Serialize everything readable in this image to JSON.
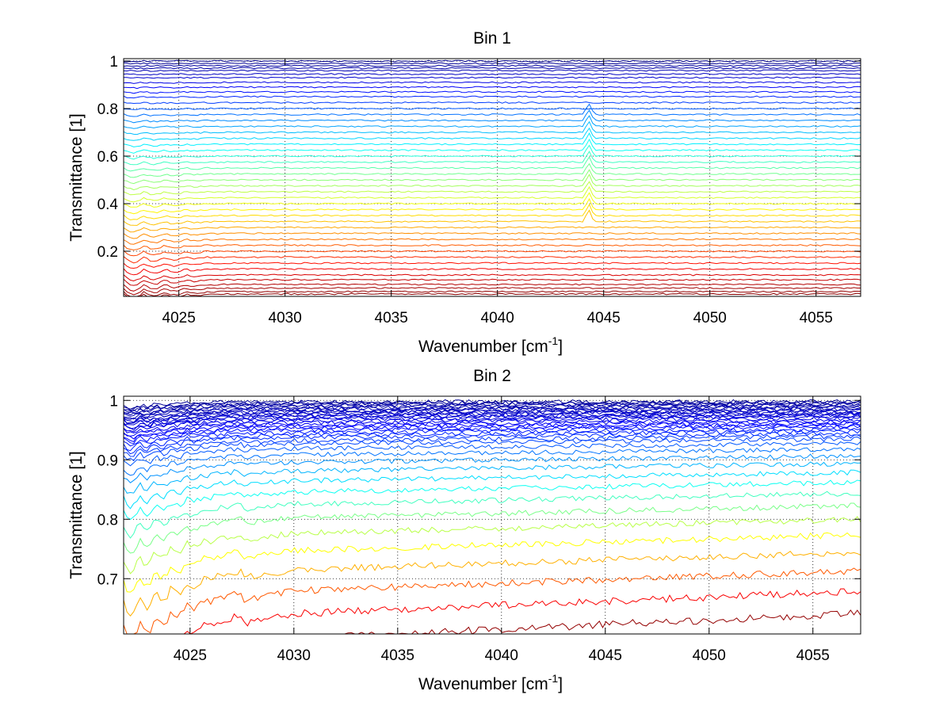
{
  "chart_data": [
    {
      "type": "line",
      "title": "Bin 1",
      "xlabel": "Wavenumber [cm",
      "xlabel_sup": "-1",
      "xlabel_end": "]",
      "ylabel": "Transmittance [1]",
      "xlim": [
        4022.4,
        4057.1
      ],
      "ylim": [
        0.01,
        1.01
      ],
      "xticks": [
        4025,
        4030,
        4035,
        4040,
        4045,
        4050,
        4055
      ],
      "xtick_labels": [
        "4025",
        "4030",
        "4035",
        "4040",
        "4045",
        "4050",
        "4055"
      ],
      "yticks": [
        0.2,
        0.4,
        0.6,
        0.8,
        1
      ],
      "ytick_labels": [
        "0.2",
        "0.4",
        "0.6",
        "0.8",
        "1"
      ],
      "grid": true,
      "colormap": "jet",
      "colors": {
        "high": "#00008f",
        "mid": "#ffff00",
        "low": "#800000"
      },
      "series_count": 46,
      "x": [
        4022.4,
        4024,
        4026,
        4028,
        4030,
        4032,
        4034,
        4036,
        4038,
        4040,
        4042,
        4044.3,
        4046,
        4048,
        4050,
        4052,
        4054,
        4056,
        4057.1
      ],
      "series_levels_at_4040": [
        1.0,
        0.99,
        0.98,
        0.97,
        0.96,
        0.945,
        0.93,
        0.91,
        0.89,
        0.87,
        0.85,
        0.825,
        0.8,
        0.775,
        0.75,
        0.725,
        0.7,
        0.675,
        0.65,
        0.625,
        0.6,
        0.575,
        0.55,
        0.525,
        0.5,
        0.475,
        0.45,
        0.425,
        0.4,
        0.375,
        0.35,
        0.325,
        0.3,
        0.275,
        0.25,
        0.225,
        0.2,
        0.175,
        0.15,
        0.125,
        0.1,
        0.08,
        0.06,
        0.045,
        0.03,
        0.02
      ],
      "annotations": [
        {
          "x": 4044.3,
          "note": "narrow upward spike"
        }
      ]
    },
    {
      "type": "line",
      "title": "Bin 2",
      "xlabel": "Wavenumber [cm",
      "xlabel_sup": "-1",
      "xlabel_end": "]",
      "ylabel": "Transmittance [1]",
      "xlim": [
        4021.8,
        4057.3
      ],
      "ylim": [
        0.607,
        1.007
      ],
      "xticks": [
        4025,
        4030,
        4035,
        4040,
        4045,
        4050,
        4055
      ],
      "xtick_labels": [
        "4025",
        "4030",
        "4035",
        "4040",
        "4045",
        "4050",
        "4055"
      ],
      "yticks": [
        0.7,
        0.8,
        0.9,
        1
      ],
      "ytick_labels": [
        "0.7",
        "0.8",
        "0.9",
        "1"
      ],
      "grid": true,
      "colormap": "jet",
      "colors": {
        "high": "#00008f",
        "mid": "#ffff00",
        "low": "#800000"
      },
      "series_count": 40,
      "x": [
        4021.8,
        4022.5,
        4023.5,
        4024.5,
        4025.5,
        4027,
        4030,
        4035,
        4040,
        4045,
        4050,
        4055,
        4057.3
      ],
      "series_levels_at_4040": [
        0.998,
        0.996,
        0.994,
        0.992,
        0.99,
        0.988,
        0.986,
        0.984,
        0.982,
        0.98,
        0.978,
        0.976,
        0.974,
        0.972,
        0.97,
        0.967,
        0.964,
        0.961,
        0.958,
        0.955,
        0.952,
        0.948,
        0.944,
        0.94,
        0.935,
        0.93,
        0.922,
        0.912,
        0.9,
        0.886,
        0.87,
        0.852,
        0.832,
        0.81,
        0.785,
        0.757,
        0.726,
        0.692,
        0.655,
        0.615
      ]
    }
  ]
}
